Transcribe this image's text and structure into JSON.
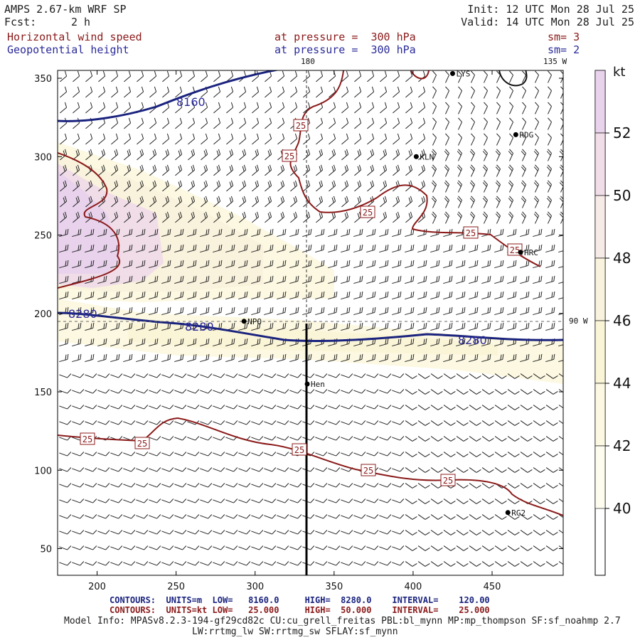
{
  "header": {
    "title": "AMPS 2.67-km WRF SP",
    "forecast_label": "Fcst:",
    "forecast_value": "2 h",
    "init": "Init: 12 UTC Mon 28 Jul 25",
    "valid": "Valid: 14 UTC Mon 28 Jul 25",
    "field1_name": "Horizontal wind speed",
    "field1_level": "at pressure =  300 hPa",
    "field1_smooth": "sm= 3",
    "field2_name": "Geopotential height",
    "field2_level": "at pressure =  300 hPa",
    "field2_smooth": "sm= 2"
  },
  "map": {
    "x_ticks": [
      "200",
      "250",
      "300",
      "350",
      "400",
      "450"
    ],
    "y_ticks": [
      "350",
      "300",
      "250",
      "200",
      "150",
      "100",
      "50"
    ],
    "x_range": [
      175,
      495
    ],
    "y_range": [
      33,
      355
    ],
    "meridian_labels": [
      "180",
      "135 W",
      "90 W"
    ],
    "stations": [
      {
        "name": "LYS",
        "x": 425,
        "y": 353
      },
      {
        "name": "RDG",
        "x": 465,
        "y": 314
      },
      {
        "name": "KLN",
        "x": 402,
        "y": 300
      },
      {
        "name": "HRC",
        "x": 468,
        "y": 239
      },
      {
        "name": "NPO",
        "x": 293,
        "y": 195
      },
      {
        "name": "Hen",
        "x": 333,
        "y": 155
      },
      {
        "name": "RG2",
        "x": 460,
        "y": 73
      }
    ],
    "height_contour_labels": [
      "8160",
      "8280",
      "8280",
      "8280"
    ],
    "speed_contour_labels": [
      "25",
      "25",
      "25",
      "25",
      "25",
      "25",
      "25",
      "25",
      "25",
      "25"
    ],
    "colorbar": {
      "unit": "kt",
      "levels": [
        "52",
        "50",
        "48",
        "46",
        "44",
        "42",
        "40"
      ],
      "colors": [
        "#e8d2ec",
        "#f0dde8",
        "#f7ebe8",
        "#f9f2dc",
        "#fbf5d8",
        "#fcf8e1",
        "#fdfcef"
      ]
    }
  },
  "footer": {
    "line1_label": "CONTOURS:",
    "line1_units": "UNITS=m",
    "line1_low": "LOW=   8160.0",
    "line1_high": "HIGH=  8280.0",
    "line1_interval": "INTERVAL=    120.00",
    "line2_label": "CONTOURS:",
    "line2_units": "UNITS=kt",
    "line2_low": "LOW=   25.000",
    "line2_high": "HIGH=  50.000",
    "line2_interval": "INTERVAL=    25.000",
    "model_info": "Model Info: MPASv8.2.3-194-gf29cd82c CU:cu_grell_freitas PBL:bl_mynn MP:mp_thompson SF:sf_noahmp 2.7",
    "model_info2": "LW:rrtmg_lw SW:rrtmg_sw SFLAY:sf_mynn"
  }
}
